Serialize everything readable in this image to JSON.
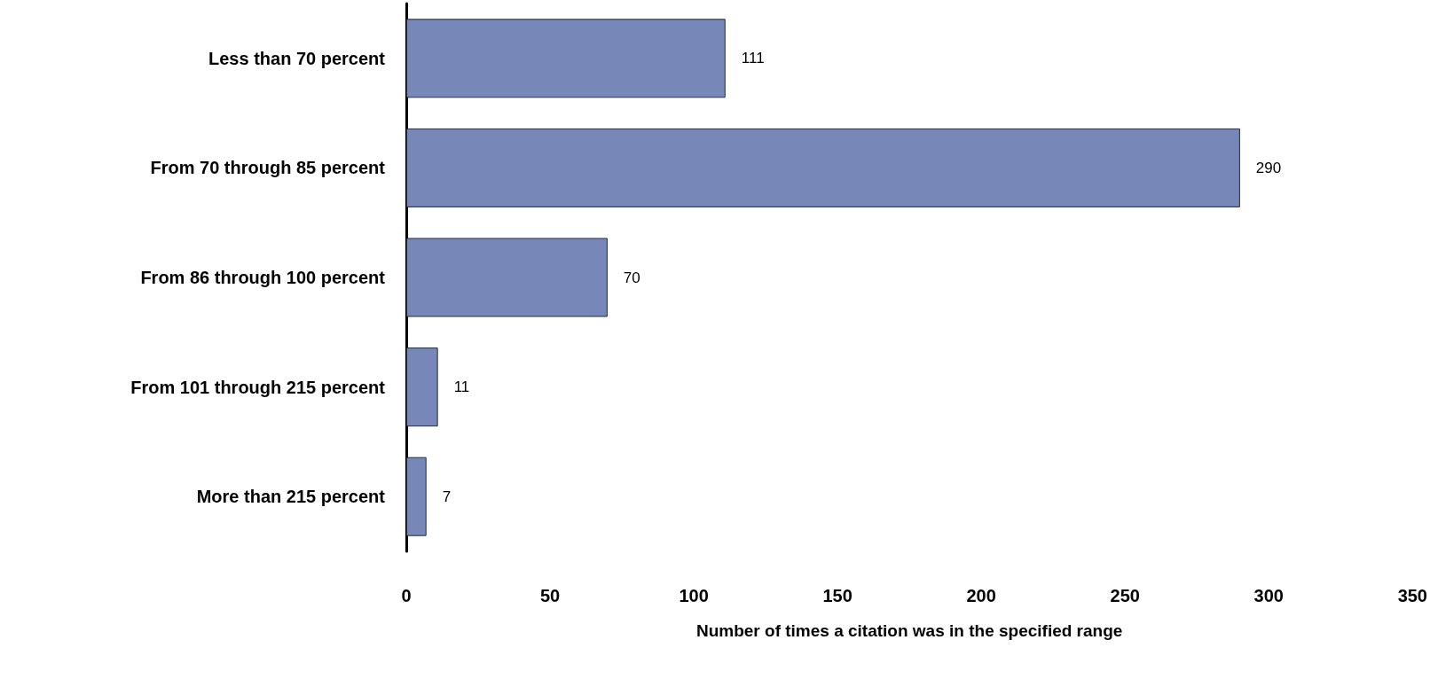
{
  "chart_data": {
    "type": "bar",
    "orientation": "horizontal",
    "xlabel": "Number of times a citation was in the specified range",
    "categories": [
      "Less than 70 percent",
      "From 70 through 85 percent",
      "From 86 through 100 percent",
      "From 101 through 215 percent",
      "More than 215 percent"
    ],
    "values": [
      111,
      290,
      70,
      11,
      7
    ],
    "color": "#7788b8",
    "data_labels": true,
    "xlim": [
      0,
      350
    ],
    "xticks": [
      0,
      50,
      100,
      150,
      200,
      250,
      300,
      350
    ]
  }
}
